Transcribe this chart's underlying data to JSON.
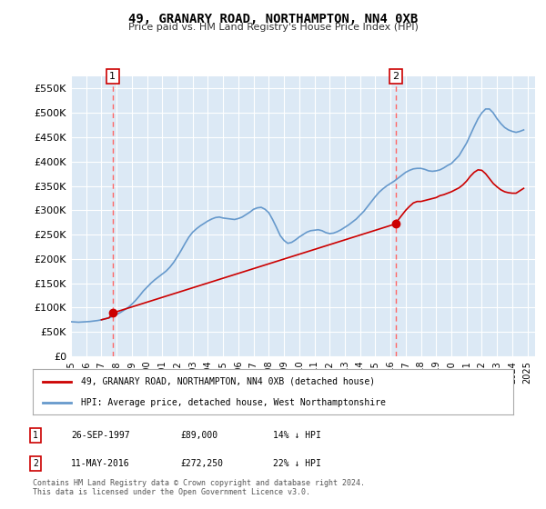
{
  "title": "49, GRANARY ROAD, NORTHAMPTON, NN4 0XB",
  "subtitle": "Price paid vs. HM Land Registry's House Price Index (HPI)",
  "background_color": "#dce9f5",
  "plot_bg_color": "#dce9f5",
  "ylabel_color": "#000000",
  "grid_color": "#ffffff",
  "ylim": [
    0,
    575000
  ],
  "yticks": [
    0,
    50000,
    100000,
    150000,
    200000,
    250000,
    300000,
    350000,
    400000,
    450000,
    500000,
    550000
  ],
  "ytick_labels": [
    "£0",
    "£50K",
    "£100K",
    "£150K",
    "£200K",
    "£250K",
    "£300K",
    "£350K",
    "£400K",
    "£450K",
    "£500K",
    "£550K"
  ],
  "xlim_start": 1995.0,
  "xlim_end": 2025.5,
  "sale1_date": 1997.74,
  "sale1_price": 89000,
  "sale1_label": "1",
  "sale2_date": 2016.36,
  "sale2_price": 272250,
  "sale2_label": "2",
  "red_line_color": "#cc0000",
  "blue_line_color": "#6699cc",
  "marker_color": "#cc0000",
  "dashed_line_color": "#ff6666",
  "legend_label1": "49, GRANARY ROAD, NORTHAMPTON, NN4 0XB (detached house)",
  "legend_label2": "HPI: Average price, detached house, West Northamptonshire",
  "table_row1": [
    "1",
    "26-SEP-1997",
    "£89,000",
    "14% ↓ HPI"
  ],
  "table_row2": [
    "2",
    "11-MAY-2016",
    "£272,250",
    "22% ↓ HPI"
  ],
  "footer": "Contains HM Land Registry data © Crown copyright and database right 2024.\nThis data is licensed under the Open Government Licence v3.0.",
  "hpi_years": [
    1995.0,
    1995.25,
    1995.5,
    1995.75,
    1996.0,
    1996.25,
    1996.5,
    1996.75,
    1997.0,
    1997.25,
    1997.5,
    1997.75,
    1998.0,
    1998.25,
    1998.5,
    1998.75,
    1999.0,
    1999.25,
    1999.5,
    1999.75,
    2000.0,
    2000.25,
    2000.5,
    2000.75,
    2001.0,
    2001.25,
    2001.5,
    2001.75,
    2002.0,
    2002.25,
    2002.5,
    2002.75,
    2003.0,
    2003.25,
    2003.5,
    2003.75,
    2004.0,
    2004.25,
    2004.5,
    2004.75,
    2005.0,
    2005.25,
    2005.5,
    2005.75,
    2006.0,
    2006.25,
    2006.5,
    2006.75,
    2007.0,
    2007.25,
    2007.5,
    2007.75,
    2008.0,
    2008.25,
    2008.5,
    2008.75,
    2009.0,
    2009.25,
    2009.5,
    2009.75,
    2010.0,
    2010.25,
    2010.5,
    2010.75,
    2011.0,
    2011.25,
    2011.5,
    2011.75,
    2012.0,
    2012.25,
    2012.5,
    2012.75,
    2013.0,
    2013.25,
    2013.5,
    2013.75,
    2014.0,
    2014.25,
    2014.5,
    2014.75,
    2015.0,
    2015.25,
    2015.5,
    2015.75,
    2016.0,
    2016.25,
    2016.5,
    2016.75,
    2017.0,
    2017.25,
    2017.5,
    2017.75,
    2018.0,
    2018.25,
    2018.5,
    2018.75,
    2019.0,
    2019.25,
    2019.5,
    2019.75,
    2020.0,
    2020.25,
    2020.5,
    2020.75,
    2021.0,
    2021.25,
    2021.5,
    2021.75,
    2022.0,
    2022.25,
    2022.5,
    2022.75,
    2023.0,
    2023.25,
    2023.5,
    2023.75,
    2024.0,
    2024.25,
    2024.5,
    2024.75
  ],
  "hpi_values": [
    71000,
    70500,
    70000,
    70500,
    71000,
    71500,
    72500,
    73500,
    75000,
    77000,
    79000,
    82000,
    86000,
    90000,
    95000,
    100000,
    107000,
    115000,
    124000,
    134000,
    142000,
    150000,
    157000,
    163000,
    169000,
    175000,
    183000,
    193000,
    205000,
    218000,
    232000,
    245000,
    255000,
    262000,
    268000,
    273000,
    278000,
    282000,
    285000,
    286000,
    284000,
    283000,
    282000,
    281000,
    283000,
    286000,
    291000,
    296000,
    302000,
    305000,
    306000,
    302000,
    295000,
    281000,
    265000,
    248000,
    238000,
    232000,
    234000,
    239000,
    245000,
    250000,
    255000,
    258000,
    259000,
    260000,
    258000,
    254000,
    252000,
    253000,
    256000,
    260000,
    265000,
    270000,
    276000,
    282000,
    290000,
    298000,
    308000,
    318000,
    328000,
    337000,
    344000,
    350000,
    355000,
    360000,
    366000,
    372000,
    378000,
    382000,
    385000,
    386000,
    386000,
    384000,
    381000,
    380000,
    381000,
    383000,
    387000,
    392000,
    396000,
    404000,
    412000,
    425000,
    438000,
    455000,
    472000,
    488000,
    500000,
    508000,
    508000,
    500000,
    488000,
    478000,
    470000,
    465000,
    462000,
    460000,
    462000,
    465000
  ],
  "red_years": [
    1997.0,
    1997.25,
    1997.5,
    1997.74,
    1997.74,
    2016.36,
    2016.36,
    2016.5,
    2016.75,
    2017.0,
    2017.25,
    2017.5,
    2017.75,
    2018.0,
    2018.25,
    2018.5,
    2018.75,
    2019.0,
    2019.25,
    2019.5,
    2019.75,
    2020.0,
    2020.25,
    2020.5,
    2020.75,
    2021.0,
    2021.25,
    2021.5,
    2021.75,
    2022.0,
    2022.25,
    2022.5,
    2022.75,
    2023.0,
    2023.25,
    2023.5,
    2023.75,
    2024.0,
    2024.25,
    2024.5,
    2024.75
  ],
  "red_values": [
    75000,
    77000,
    79000,
    89000,
    89000,
    272250,
    272250,
    280000,
    290000,
    300000,
    308000,
    315000,
    318000,
    318000,
    320000,
    322000,
    324000,
    326000,
    330000,
    332000,
    335000,
    338000,
    342000,
    346000,
    352000,
    360000,
    370000,
    378000,
    383000,
    382000,
    375000,
    365000,
    355000,
    348000,
    342000,
    338000,
    336000,
    335000,
    335000,
    340000,
    345000
  ]
}
